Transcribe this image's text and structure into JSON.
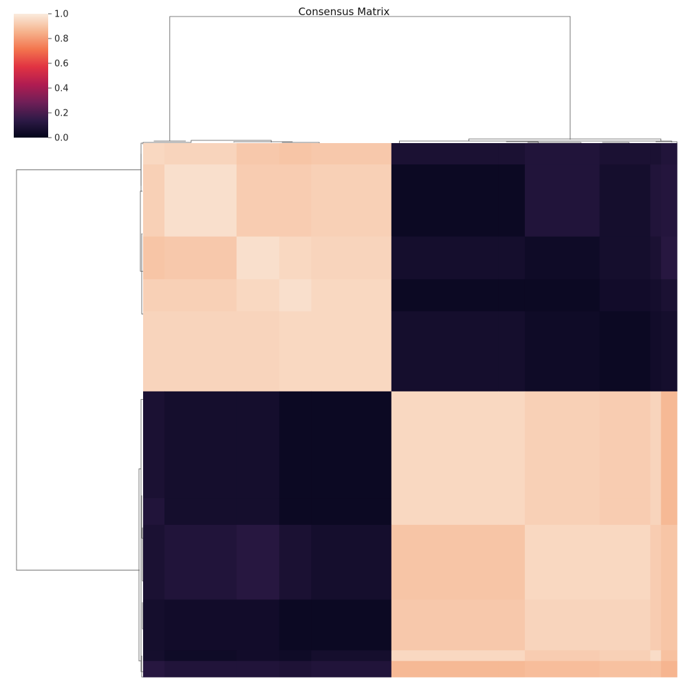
{
  "chart_data": {
    "type": "heatmap",
    "title": "Consensus Matrix",
    "xlabel": "",
    "ylabel": "",
    "colorbar": {
      "vmin": 0.0,
      "vmax": 1.0,
      "ticks": [
        "0.0",
        "0.2",
        "0.4",
        "0.6",
        "0.8",
        "1.0"
      ],
      "colormap": "rocket",
      "stops": [
        "#03051a",
        "#2e1a47",
        "#701f57",
        "#b01c51",
        "#e13342",
        "#f3754e",
        "#f6b48e",
        "#faebdd"
      ]
    },
    "dendrograms": {
      "top": "column clustering, two main clusters",
      "left": "row clustering, two main clusters"
    },
    "block_edges": [
      0.0,
      0.04,
      0.175,
      0.255,
      0.315,
      0.465,
      0.665,
      0.715,
      0.855,
      0.95,
      0.97,
      1.0
    ],
    "block_values": [
      [
        0.95,
        0.94,
        0.91,
        0.9,
        0.91,
        0.08,
        0.08,
        0.1,
        0.08,
        0.08,
        0.1
      ],
      [
        0.93,
        0.97,
        0.92,
        0.92,
        0.93,
        0.03,
        0.03,
        0.1,
        0.06,
        0.1,
        0.11
      ],
      [
        0.9,
        0.91,
        0.97,
        0.95,
        0.94,
        0.06,
        0.06,
        0.04,
        0.06,
        0.08,
        0.12
      ],
      [
        0.93,
        0.93,
        0.95,
        0.97,
        0.95,
        0.03,
        0.03,
        0.03,
        0.05,
        0.06,
        0.08
      ],
      [
        0.94,
        0.94,
        0.94,
        0.95,
        0.95,
        0.06,
        0.06,
        0.04,
        0.03,
        0.05,
        0.06
      ],
      [
        0.08,
        0.06,
        0.06,
        0.03,
        0.03,
        0.95,
        0.95,
        0.93,
        0.92,
        0.94,
        0.87
      ],
      [
        0.1,
        0.06,
        0.06,
        0.03,
        0.03,
        0.95,
        0.95,
        0.93,
        0.92,
        0.94,
        0.87
      ],
      [
        0.08,
        0.1,
        0.12,
        0.08,
        0.06,
        0.9,
        0.9,
        0.95,
        0.95,
        0.92,
        0.9
      ],
      [
        0.06,
        0.05,
        0.05,
        0.03,
        0.03,
        0.91,
        0.91,
        0.94,
        0.94,
        0.92,
        0.9
      ],
      [
        0.06,
        0.04,
        0.05,
        0.04,
        0.06,
        0.95,
        0.95,
        0.92,
        0.93,
        0.96,
        0.89
      ],
      [
        0.12,
        0.1,
        0.1,
        0.09,
        0.1,
        0.87,
        0.87,
        0.88,
        0.89,
        0.89,
        0.86
      ]
    ],
    "colors": {
      "dendrogram_line": "#555555",
      "background": "#ffffff"
    }
  }
}
